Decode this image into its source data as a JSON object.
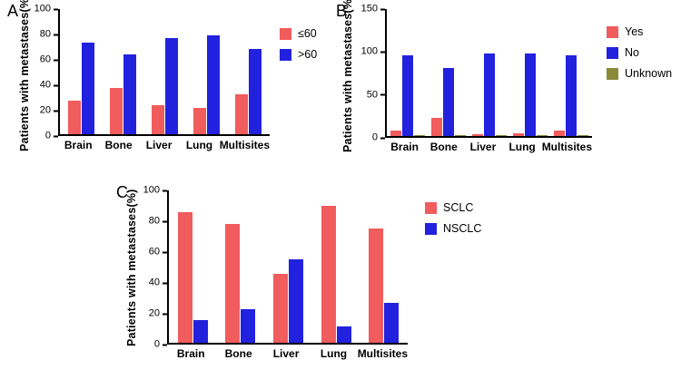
{
  "figure": {
    "background": "#ffffff"
  },
  "chart_data": [
    {
      "type": "bar",
      "panel_label": "A",
      "title": "",
      "ylabel": "Patients with metastases(%)",
      "xlabel": "",
      "categories": [
        "Brain",
        "Bone",
        "Liver",
        "Lung",
        "Multisites"
      ],
      "series": [
        {
          "name": "≤60",
          "key": "le60",
          "color": "#F15C5C",
          "values": [
            27,
            37,
            23,
            21,
            32
          ]
        },
        {
          "name": ">60",
          "key": "gt60",
          "color": "#2222DE",
          "values": [
            73,
            64,
            77,
            79,
            68
          ]
        }
      ],
      "ylim": [
        0,
        100
      ],
      "yticks": [
        0,
        20,
        40,
        60,
        80,
        100
      ],
      "grid": false,
      "legend_position": "right"
    },
    {
      "type": "bar",
      "panel_label": "B",
      "title": "",
      "ylabel": "Patients with metastases(%)",
      "xlabel": "",
      "categories": [
        "Brain",
        "Bone",
        "Liver",
        "Lung",
        "Multisites"
      ],
      "series": [
        {
          "name": "Yes",
          "key": "yes",
          "color": "#F15C5C",
          "values": [
            6,
            21,
            2,
            3,
            6
          ]
        },
        {
          "name": "No",
          "key": "no",
          "color": "#2222DE",
          "values": [
            95,
            80,
            98,
            98,
            95
          ]
        },
        {
          "name": "Unknown",
          "key": "unknown",
          "color": "#8A8A3A",
          "values": [
            1,
            1,
            1,
            1,
            1
          ]
        }
      ],
      "ylim": [
        0,
        150
      ],
      "yticks": [
        0,
        50,
        100,
        150
      ],
      "grid": false,
      "legend_position": "right"
    },
    {
      "type": "bar",
      "panel_label": "C",
      "title": "",
      "ylabel": "Patients with metastases(%)",
      "xlabel": "",
      "categories": [
        "Brain",
        "Bone",
        "Liver",
        "Lung",
        "Multisites"
      ],
      "series": [
        {
          "name": "SCLC",
          "key": "sclc",
          "color": "#F15C5C",
          "values": [
            86,
            78,
            45,
            90,
            75
          ]
        },
        {
          "name": "NSCLC",
          "key": "nsclc",
          "color": "#2222DE",
          "values": [
            15,
            22,
            55,
            11,
            26
          ]
        }
      ],
      "ylim": [
        0,
        100
      ],
      "yticks": [
        0,
        20,
        40,
        60,
        80,
        100
      ],
      "grid": false,
      "legend_position": "right"
    }
  ]
}
